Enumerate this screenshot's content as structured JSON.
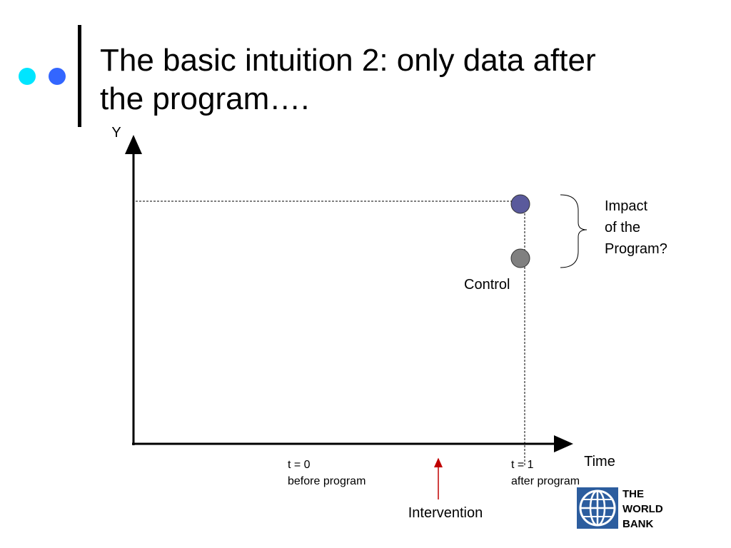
{
  "header": {
    "title": "The basic intuition 2: only data after the program…."
  },
  "diagram": {
    "y_axis_label": "Y",
    "x_axis_label": "Time",
    "t0": {
      "label": "t = 0",
      "caption": "before program"
    },
    "t1": {
      "label": "t = 1",
      "caption": "after program"
    },
    "intervention": "Intervention",
    "control": "Control",
    "impact": [
      "Impact",
      "of the",
      "Program?"
    ]
  },
  "logo": [
    "THE",
    "WORLD",
    "BANK"
  ]
}
